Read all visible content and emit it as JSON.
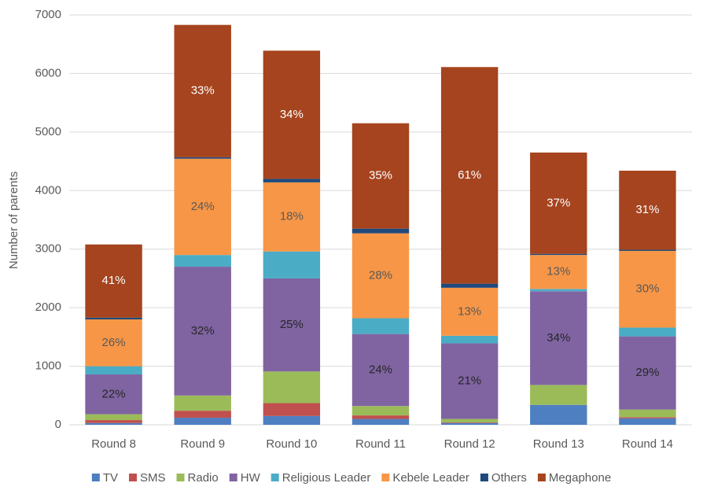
{
  "chart_data": {
    "type": "bar",
    "stacked": true,
    "y_label": "Number of parents",
    "categories": [
      "Round 8",
      "Round 9",
      "Round 10",
      "Round 11",
      "Round 12",
      "Round 13",
      "Round 14"
    ],
    "ylim": [
      0,
      7000
    ],
    "yticks": [
      0,
      1000,
      2000,
      3000,
      4000,
      5000,
      6000,
      7000
    ],
    "grid": true,
    "legend": "bottom",
    "series": [
      {
        "name": "TV",
        "color": "#4e7fc1",
        "values": [
          30,
          120,
          150,
          100,
          30,
          340,
          110
        ]
      },
      {
        "name": "SMS",
        "color": "#c0504d",
        "values": [
          50,
          120,
          220,
          60,
          10,
          0,
          20
        ]
      },
      {
        "name": "Radio",
        "color": "#9bbb59",
        "values": [
          100,
          260,
          540,
          160,
          60,
          340,
          130
        ]
      },
      {
        "name": "HW",
        "color": "#8064a2",
        "label_color": "#262626",
        "values": [
          680,
          2200,
          1590,
          1230,
          1290,
          1600,
          1250
        ],
        "value_labels": [
          "22%",
          "32%",
          "25%",
          "24%",
          "21%",
          "34%",
          "29%"
        ]
      },
      {
        "name": "Religious Leader",
        "color": "#4bacc6",
        "values": [
          140,
          200,
          460,
          270,
          130,
          40,
          150
        ]
      },
      {
        "name": "Kebele Leader",
        "color": "#f79646",
        "label_color": "#595959",
        "values": [
          800,
          1645,
          1180,
          1450,
          820,
          580,
          1310
        ],
        "value_labels": [
          "26%",
          "24%",
          "18%",
          "28%",
          "13%",
          "13%",
          "30%"
        ]
      },
      {
        "name": "Others",
        "color": "#1f497d",
        "values": [
          30,
          25,
          60,
          80,
          70,
          20,
          20
        ]
      },
      {
        "name": "Megaphone",
        "color": "#a5441e",
        "label_color": "#ffffff",
        "values": [
          1250,
          2260,
          2190,
          1800,
          3700,
          1730,
          1350
        ],
        "value_labels": [
          "41%",
          "33%",
          "34%",
          "35%",
          "61%",
          "37%",
          "31%"
        ]
      }
    ]
  }
}
